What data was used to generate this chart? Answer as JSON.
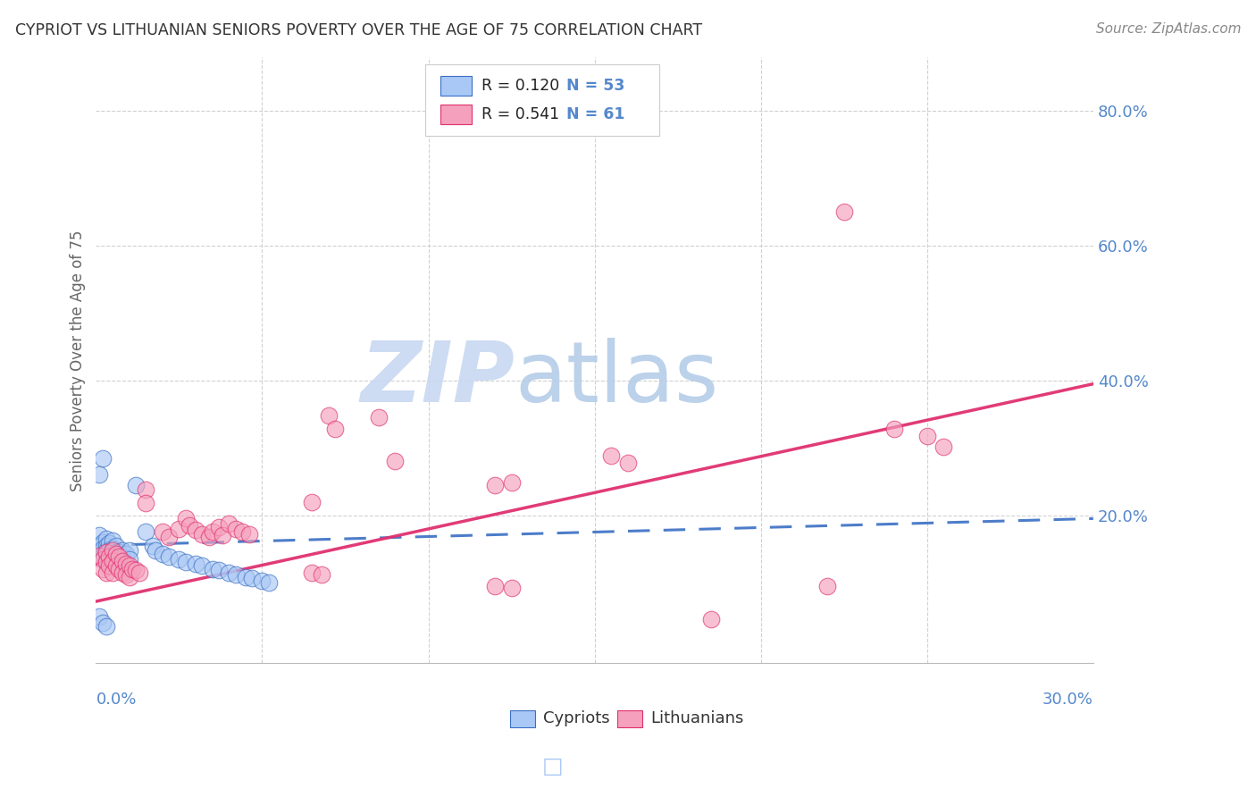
{
  "title": "CYPRIOT VS LITHUANIAN SENIORS POVERTY OVER THE AGE OF 75 CORRELATION CHART",
  "source": "Source: ZipAtlas.com",
  "ylabel": "Seniors Poverty Over the Age of 75",
  "ytick_labels": [
    "80.0%",
    "60.0%",
    "40.0%",
    "20.0%"
  ],
  "ytick_values": [
    0.8,
    0.6,
    0.4,
    0.2
  ],
  "xmin": 0.0,
  "xmax": 0.3,
  "ymin": -0.02,
  "ymax": 0.88,
  "cypriot_color": "#aac8f5",
  "lithuanian_color": "#f5a0bc",
  "cypriot_line_color": "#3a6fc4",
  "lithuanian_line_color": "#e03070",
  "axis_color": "#5588cc",
  "title_color": "#333333",
  "watermark_zip_color": "#c5d8f0",
  "watermark_atlas_color": "#b8cce8",
  "background_color": "#ffffff",
  "grid_color": "#cccccc",
  "cyp_line_x0": 0.0,
  "cyp_line_y0": 0.155,
  "cyp_line_x1": 0.3,
  "cyp_line_y1": 0.195,
  "lit_line_x0": 0.0,
  "lit_line_y0": 0.072,
  "lit_line_x1": 0.3,
  "lit_line_y1": 0.395
}
